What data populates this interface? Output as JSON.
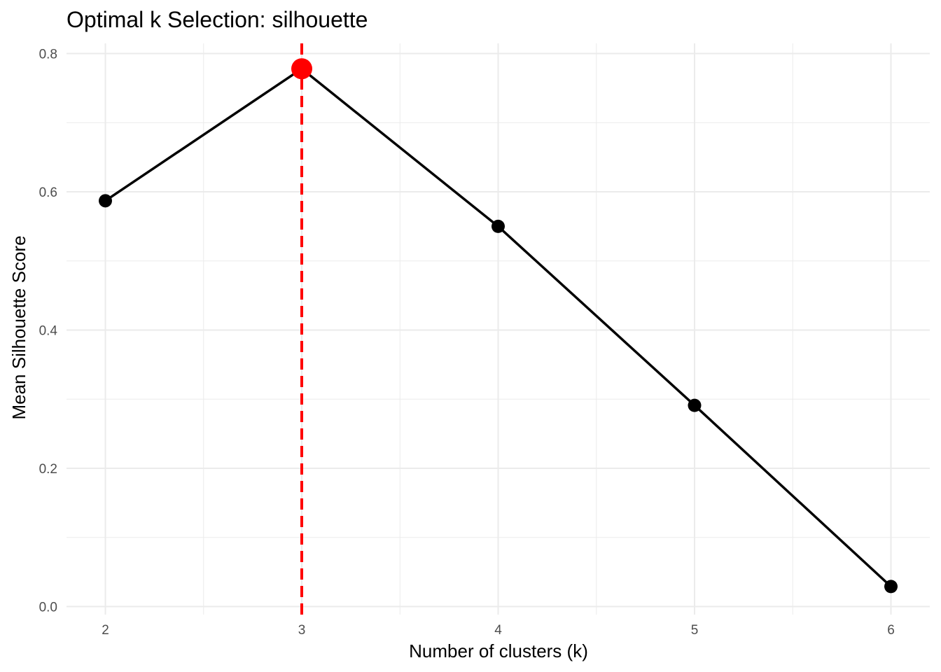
{
  "chart_data": {
    "type": "line",
    "title": "Optimal k Selection: silhouette",
    "xlabel": "Number of clusters (k)",
    "ylabel": "Mean Silhouette Score",
    "x": [
      2,
      3,
      4,
      5,
      6
    ],
    "series": [
      {
        "values": [
          0.587,
          0.778,
          0.55,
          0.291,
          0.029
        ]
      }
    ],
    "x_ticks": [
      "2",
      "3",
      "4",
      "5",
      "6"
    ],
    "y_ticks": [
      "0.0",
      "0.2",
      "0.4",
      "0.6",
      "0.8"
    ],
    "xlim": [
      1.8,
      6.2
    ],
    "ylim": [
      0.0,
      0.8
    ],
    "grid": true,
    "legend": "none",
    "optimal_k": 3,
    "colors": {
      "line": "#000000",
      "point": "#000000",
      "optimal_point": "#ff0000",
      "optimal_vline": "#ff0000",
      "grid": "#ebebeb",
      "tick_text": "#4d4d4d"
    }
  }
}
